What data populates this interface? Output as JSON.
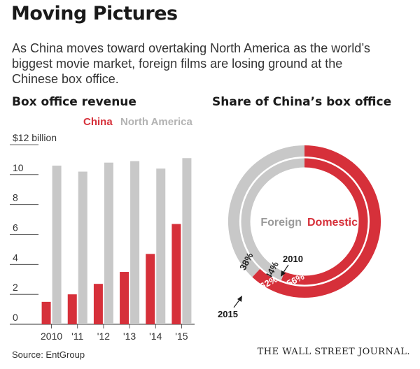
{
  "title": "Moving Pictures",
  "subtitle_lines": [
    "As China moves toward overtaking North America as the world’s",
    "biggest movie market, foreign films are losing ground at the",
    "Chinese box office."
  ],
  "source": "Source: EntGroup",
  "credit": "THE WALL STREET JOURNAL.",
  "colors": {
    "china": "#d6303a",
    "north_america": "#c8c8c8",
    "text": "#222222"
  },
  "chart_data": [
    {
      "type": "bar",
      "title": "Box office revenue",
      "categories": [
        "2010",
        "'11",
        "'12",
        "'13",
        "'14",
        "'15"
      ],
      "series": [
        {
          "name": "China",
          "color": "#d6303a",
          "values": [
            1.5,
            2.0,
            2.7,
            3.5,
            4.7,
            6.7
          ]
        },
        {
          "name": "North America",
          "color": "#c8c8c8",
          "values": [
            10.6,
            10.2,
            10.8,
            10.9,
            10.4,
            11.1
          ]
        }
      ],
      "ylim": [
        0,
        12
      ],
      "yticks": [
        0,
        2,
        4,
        6,
        8,
        10
      ],
      "top_tick_label": "$12 billion",
      "grid": false
    },
    {
      "type": "pie",
      "subtype": "nested-donut",
      "title": "Share of China’s box office",
      "categories": [
        "Domestic",
        "Foreign"
      ],
      "series": [
        {
          "name": "2010",
          "values": [
            56,
            44
          ],
          "labels": [
            "56%",
            "44%"
          ]
        },
        {
          "name": "2015",
          "values": [
            62,
            38
          ],
          "labels": [
            "62%",
            "38%"
          ]
        }
      ],
      "colors": [
        "#d6303a",
        "#c8c8c8"
      ]
    }
  ]
}
